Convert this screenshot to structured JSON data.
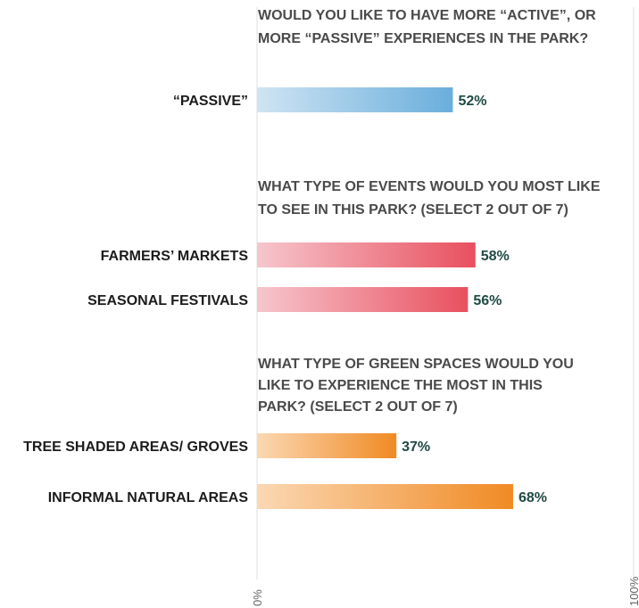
{
  "chart_data": {
    "type": "bar",
    "orientation": "horizontal",
    "axis": {
      "min_label": "0%",
      "max_label": "100%",
      "xlim": [
        0,
        100
      ]
    },
    "grid": true,
    "groups": [
      {
        "question_lines": [
          "WOULD YOU LIKE TO HAVE MORE “ACTIVE”, OR",
          "MORE “PASSIVE” EXPERIENCES IN THE PARK?"
        ],
        "color_light": "#cfe4f3",
        "color_dark": "#6aaedc",
        "bars": [
          {
            "label": "“PASSIVE”",
            "value": 52,
            "value_label": "52%"
          }
        ]
      },
      {
        "question_lines": [
          "WHAT TYPE OF EVENTS WOULD YOU MOST LIKE",
          "TO SEE IN THIS PARK? (SELECT 2 OUT OF 7)"
        ],
        "color_light": "#f7c6cd",
        "color_dark": "#e8505f",
        "bars": [
          {
            "label": "FARMERS’ MARKETS",
            "value": 58,
            "value_label": "58%"
          },
          {
            "label": "SEASONAL FESTIVALS",
            "value": 56,
            "value_label": "56%"
          }
        ]
      },
      {
        "question_lines": [
          "WHAT TYPE OF GREEN SPACES WOULD YOU",
          "LIKE TO EXPERIENCE THE MOST IN THIS",
          "PARK? (SELECT 2 OUT OF 7)"
        ],
        "color_light": "#fbd8b3",
        "color_dark": "#f08a24",
        "bars": [
          {
            "label": "TREE SHADED AREAS/ GROVES",
            "value": 37,
            "value_label": "37%"
          },
          {
            "label": "INFORMAL NATURAL AREAS",
            "value": 68,
            "value_label": "68%"
          }
        ]
      }
    ]
  }
}
